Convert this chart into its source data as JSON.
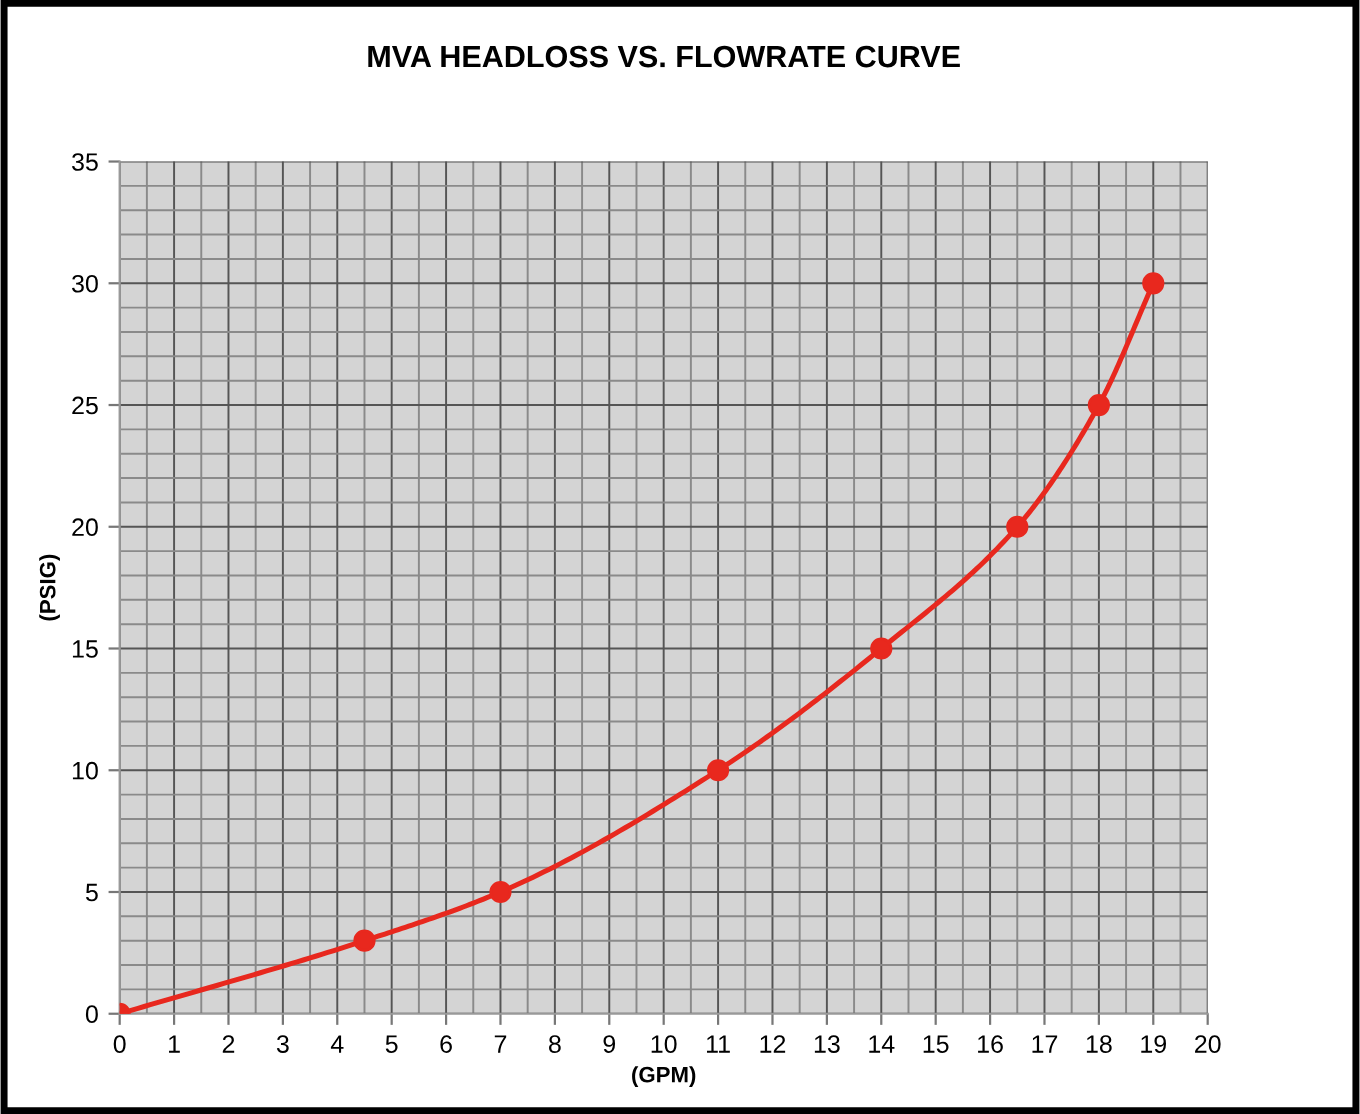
{
  "chart_data": {
    "type": "line",
    "title": "MVA HEADLOSS VS. FLOWRATE CURVE",
    "xlabel": "(GPM)",
    "ylabel": "(PSIG)",
    "x": [
      0,
      4.5,
      7,
      11,
      14,
      16.5,
      18,
      19
    ],
    "series": [
      {
        "color": "#e8281e",
        "values": [
          0,
          3,
          5,
          10,
          15,
          20,
          25,
          30
        ]
      }
    ],
    "xlim": [
      0,
      20
    ],
    "xticks": [
      0,
      1,
      2,
      3,
      4,
      5,
      6,
      7,
      8,
      9,
      10,
      11,
      12,
      13,
      14,
      15,
      16,
      17,
      18,
      19,
      20
    ],
    "ylim": [
      0,
      35
    ],
    "yticks": [
      0,
      5,
      10,
      15,
      20,
      25,
      30,
      35
    ],
    "grid": true,
    "marker": "circle",
    "line_style": "solid",
    "legend": false
  }
}
